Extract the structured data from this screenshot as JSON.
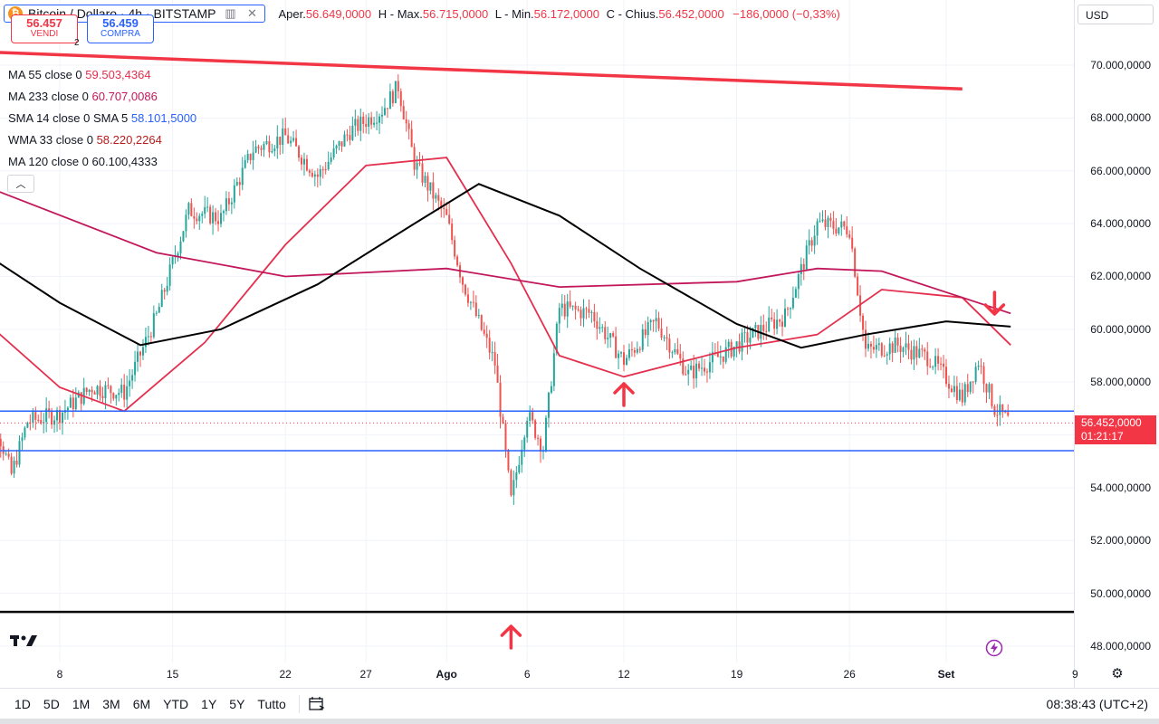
{
  "header": {
    "symbol": "Bitcoin / Dollaro · 4h · BITSTAMP",
    "open_label": "Aper.",
    "open_value": "56.649,0000",
    "high_label": "H - Max.",
    "high_value": "56.715,0000",
    "low_label": "L - Min.",
    "low_value": "56.172,0000",
    "close_label": "C - Chius.",
    "close_value": "56.452,0000",
    "change": "−186,0000 (−0,33%)"
  },
  "trade": {
    "sell_price": "56.457",
    "sell_label": "VENDI",
    "spread": "2",
    "buy_price": "56.459",
    "buy_label": "COMPRA"
  },
  "indicators": [
    {
      "name": "MA 55 close 0",
      "value": "59.503,4364",
      "color": "#e4304e"
    },
    {
      "name": "MA 233 close 0",
      "value": "60.707,0086",
      "color": "#c2185b"
    },
    {
      "name": "SMA 14 close 0 SMA 5",
      "value": "58.101,5000",
      "color": "#2962ff"
    },
    {
      "name": "WMA 33 close 0",
      "value": "58.220,2264",
      "color": "#b71c1c"
    },
    {
      "name": "MA 120 close 0",
      "value": "60.100,4333",
      "color": "#000000"
    }
  ],
  "currency": "USD",
  "price_badge": {
    "price": "56.452,0000",
    "countdown": "01:21:17"
  },
  "bottom_bar": {
    "ranges": [
      "1D",
      "5D",
      "1M",
      "3M",
      "6M",
      "YTD",
      "1Y",
      "5Y",
      "Tutto"
    ],
    "clock": "08:38:43 (UTC+2)"
  },
  "icons": {
    "btc": "bitcoin-icon",
    "eye": "eye-icon",
    "close": "close-icon",
    "calendar": "calendar-icon",
    "settings": "gear-icon",
    "logo": "tradingview-logo",
    "lightning": "lightning-icon"
  },
  "colors": {
    "up": "#26a69a",
    "down": "#ef5350",
    "accent_red": "#f23645",
    "accent_blue": "#2962ff"
  },
  "chart_data": {
    "type": "candlestick",
    "timeframe": "4h",
    "y_axis": {
      "ticks": [
        "48.000,0000",
        "50.000,0000",
        "52.000,0000",
        "54.000,0000",
        "56.000,0000",
        "58.000,0000",
        "60.000,0000",
        "62.000,0000",
        "64.000,0000",
        "66.000,0000",
        "68.000,0000",
        "70.000,0000"
      ],
      "range": [
        47500,
        71000
      ]
    },
    "x_axis": {
      "ticks": [
        {
          "label": "8",
          "date": "2024-07-08"
        },
        {
          "label": "15",
          "date": "2024-07-15"
        },
        {
          "label": "22",
          "date": "2024-07-22"
        },
        {
          "label": "27",
          "date": "2024-07-27"
        },
        {
          "label": "Ago",
          "date": "2024-08-01"
        },
        {
          "label": "6",
          "date": "2024-08-06"
        },
        {
          "label": "12",
          "date": "2024-08-12"
        },
        {
          "label": "19",
          "date": "2024-08-19"
        },
        {
          "label": "26",
          "date": "2024-08-26"
        },
        {
          "label": "Set",
          "date": "2024-09-01"
        },
        {
          "label": "9",
          "date": "2024-09-09"
        }
      ]
    },
    "approx_close_path": [
      {
        "date": "2024-07-03",
        "close": 58500
      },
      {
        "date": "2024-07-05",
        "close": 54500
      },
      {
        "date": "2024-07-06",
        "close": 56500
      },
      {
        "date": "2024-07-08",
        "close": 56800
      },
      {
        "date": "2024-07-10",
        "close": 57800
      },
      {
        "date": "2024-07-12",
        "close": 57600
      },
      {
        "date": "2024-07-14",
        "close": 60500
      },
      {
        "date": "2024-07-16",
        "close": 64500
      },
      {
        "date": "2024-07-18",
        "close": 64200
      },
      {
        "date": "2024-07-20",
        "close": 66800
      },
      {
        "date": "2024-07-22",
        "close": 67300
      },
      {
        "date": "2024-07-24",
        "close": 65800
      },
      {
        "date": "2024-07-26",
        "close": 67500
      },
      {
        "date": "2024-07-28",
        "close": 68300
      },
      {
        "date": "2024-07-29",
        "close": 69200
      },
      {
        "date": "2024-07-30",
        "close": 66300
      },
      {
        "date": "2024-08-01",
        "close": 64200
      },
      {
        "date": "2024-08-02",
        "close": 61800
      },
      {
        "date": "2024-08-04",
        "close": 58700
      },
      {
        "date": "2024-08-05",
        "close": 53500
      },
      {
        "date": "2024-08-06",
        "close": 56800
      },
      {
        "date": "2024-08-07",
        "close": 55500
      },
      {
        "date": "2024-08-08",
        "close": 60800
      },
      {
        "date": "2024-08-10",
        "close": 60600
      },
      {
        "date": "2024-08-12",
        "close": 58800
      },
      {
        "date": "2024-08-14",
        "close": 60300
      },
      {
        "date": "2024-08-16",
        "close": 58300
      },
      {
        "date": "2024-08-18",
        "close": 59000
      },
      {
        "date": "2024-08-20",
        "close": 59800
      },
      {
        "date": "2024-08-22",
        "close": 60500
      },
      {
        "date": "2024-08-24",
        "close": 64000
      },
      {
        "date": "2024-08-26",
        "close": 63800
      },
      {
        "date": "2024-08-27",
        "close": 59200
      },
      {
        "date": "2024-08-29",
        "close": 59400
      },
      {
        "date": "2024-08-31",
        "close": 58900
      },
      {
        "date": "2024-09-02",
        "close": 57400
      },
      {
        "date": "2024-09-03",
        "close": 58800
      },
      {
        "date": "2024-09-04",
        "close": 57000
      },
      {
        "date": "2024-09-05",
        "close": 56452
      }
    ],
    "moving_averages": [
      {
        "name": "MA 55 close 0",
        "last": 59503.4364,
        "color": "#e4304e",
        "path": [
          [
            "2024-07-03",
            60500
          ],
          [
            "2024-07-08",
            57800
          ],
          [
            "2024-07-12",
            56900
          ],
          [
            "2024-07-17",
            59500
          ],
          [
            "2024-07-22",
            63200
          ],
          [
            "2024-07-27",
            66200
          ],
          [
            "2024-08-01",
            66500
          ],
          [
            "2024-08-05",
            62500
          ],
          [
            "2024-08-08",
            59000
          ],
          [
            "2024-08-12",
            58200
          ],
          [
            "2024-08-19",
            59300
          ],
          [
            "2024-08-24",
            59800
          ],
          [
            "2024-08-28",
            61500
          ],
          [
            "2024-09-02",
            61200
          ],
          [
            "2024-09-05",
            59400
          ]
        ]
      },
      {
        "name": "MA 233 close 0",
        "last": 60707.0086,
        "color": "#c2185b",
        "path": [
          [
            "2024-07-03",
            65500
          ],
          [
            "2024-07-14",
            62900
          ],
          [
            "2024-07-22",
            62000
          ],
          [
            "2024-08-01",
            62300
          ],
          [
            "2024-08-08",
            61600
          ],
          [
            "2024-08-19",
            61800
          ],
          [
            "2024-08-24",
            62300
          ],
          [
            "2024-08-28",
            62200
          ],
          [
            "2024-09-05",
            60600
          ]
        ]
      },
      {
        "name": "MA 120 close 0",
        "last": 60100.4333,
        "color": "#000000",
        "path": [
          [
            "2024-07-03",
            63000
          ],
          [
            "2024-07-08",
            61000
          ],
          [
            "2024-07-13",
            59400
          ],
          [
            "2024-07-18",
            60000
          ],
          [
            "2024-07-24",
            61700
          ],
          [
            "2024-07-30",
            64000
          ],
          [
            "2024-08-03",
            65500
          ],
          [
            "2024-08-08",
            64300
          ],
          [
            "2024-08-13",
            62300
          ],
          [
            "2024-08-19",
            60200
          ],
          [
            "2024-08-23",
            59300
          ],
          [
            "2024-08-27",
            59800
          ],
          [
            "2024-09-01",
            60300
          ],
          [
            "2024-09-05",
            60100
          ]
        ]
      }
    ],
    "horizontal_levels": [
      {
        "price": 56900,
        "color": "#2962ff"
      },
      {
        "price": 55400,
        "color": "#2962ff"
      },
      {
        "price": 49300,
        "color": "#000000"
      }
    ],
    "trend_line": {
      "from": {
        "date": "2024-06-29",
        "price": 70600
      },
      "to": {
        "date": "2024-09-02",
        "price": 69100
      },
      "color": "#f23645"
    },
    "markers": [
      {
        "type": "arrow-up",
        "date": "2024-08-05",
        "color": "#f23645"
      },
      {
        "type": "arrow-up",
        "date": "2024-08-12",
        "color": "#f23645"
      },
      {
        "type": "arrow-down",
        "date": "2024-09-04",
        "color": "#f23645"
      }
    ],
    "last_price": 56452
  }
}
